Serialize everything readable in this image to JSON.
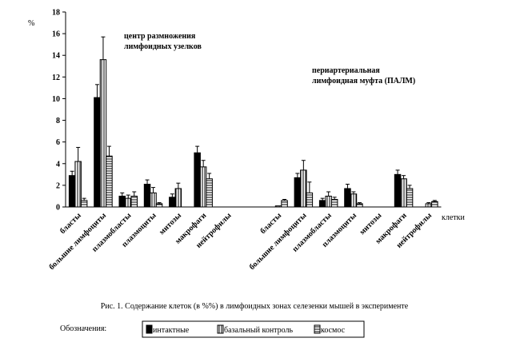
{
  "chart_data": {
    "type": "bar",
    "y_label": "%",
    "x_label": "клетки",
    "caption": "Рис. 1.  Содержание клеток (в %%) в лимфоидных  зонах селезенки мышей в эксперименте",
    "legend_title": "Обозначения:",
    "annotations": [
      [
        "центр размножения",
        "лимфоидных узелков"
      ],
      [
        "периартериальная",
        "лимфоидная муфта (ПАЛМ)"
      ]
    ],
    "categories": [
      "бласты",
      "большие лимфоциты",
      "плазмобласты",
      "плазмоциты",
      "митозы",
      "макрофаги",
      "нейтрофилы",
      null,
      "бласты",
      "большие лимфоциты",
      "плазмобласты",
      "плазмоциты",
      "митозы",
      "макрофаги",
      "нейтрофилы"
    ],
    "series": [
      {
        "name": "интактные",
        "color": "#000000",
        "pattern": "solid",
        "values": [
          2.9,
          10.1,
          1.0,
          2.1,
          0.9,
          5.0,
          0,
          null,
          0,
          2.7,
          0.6,
          1.7,
          0,
          3.0,
          0
        ],
        "errors": [
          0.4,
          1.2,
          0.3,
          0.4,
          0.3,
          0.6,
          0,
          null,
          0,
          0.4,
          0.2,
          0.4,
          0,
          0.4,
          0
        ]
      },
      {
        "name": "базальный контроль",
        "color": "#000000",
        "pattern": "vertical",
        "values": [
          4.2,
          13.6,
          0.8,
          1.3,
          1.7,
          3.7,
          0,
          null,
          0.1,
          3.4,
          1.0,
          1.2,
          0,
          2.6,
          0.3
        ],
        "errors": [
          1.3,
          2.1,
          0.3,
          0.5,
          0.5,
          0.6,
          0,
          null,
          0,
          0.9,
          0.4,
          0.2,
          0,
          0.3,
          0.1
        ]
      },
      {
        "name": "космос",
        "color": "#000000",
        "pattern": "horizontal",
        "values": [
          0.6,
          4.7,
          1.0,
          0.3,
          0,
          2.6,
          0,
          null,
          0.6,
          1.3,
          0.7,
          0.3,
          0,
          1.7,
          0.5
        ],
        "errors": [
          0.2,
          0.9,
          0.4,
          0.1,
          0,
          0.5,
          0,
          null,
          0.1,
          1.0,
          0.2,
          0.1,
          0,
          0.3,
          0.1
        ]
      }
    ],
    "ylim": [
      0,
      18
    ],
    "yticks": [
      0,
      2,
      4,
      6,
      8,
      10,
      12,
      14,
      16,
      18
    ],
    "grid": false
  }
}
